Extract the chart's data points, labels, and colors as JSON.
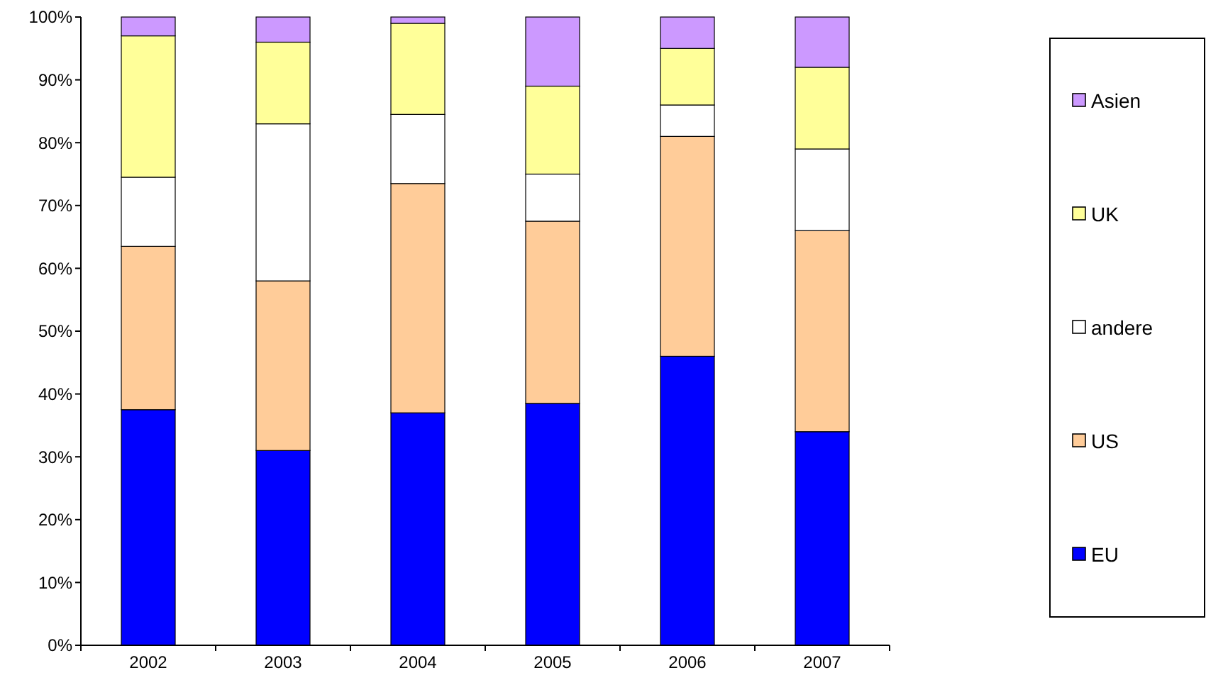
{
  "chart_data": {
    "type": "bar",
    "stacked": true,
    "categories": [
      "2002",
      "2003",
      "2004",
      "2005",
      "2006",
      "2007"
    ],
    "series": [
      {
        "name": "EU",
        "color": "#0000ff",
        "values": [
          37.5,
          31,
          37,
          38.5,
          46,
          34
        ]
      },
      {
        "name": "US",
        "color": "#ffcc99",
        "values": [
          26,
          27,
          36.5,
          29,
          35,
          32
        ]
      },
      {
        "name": "andere",
        "color": "#ffffff",
        "values": [
          11,
          25,
          11,
          7.5,
          5,
          13
        ]
      },
      {
        "name": "UK",
        "color": "#ffff99",
        "values": [
          22.5,
          13,
          14.5,
          14,
          9,
          13
        ]
      },
      {
        "name": "Asien",
        "color": "#cc99ff",
        "values": [
          3,
          4,
          1,
          11,
          5,
          8
        ]
      }
    ],
    "ylim": [
      0,
      100
    ],
    "yticks": [
      {
        "value": 0,
        "label": "0%"
      },
      {
        "value": 10,
        "label": "10%"
      },
      {
        "value": 20,
        "label": "20%"
      },
      {
        "value": 30,
        "label": "30%"
      },
      {
        "value": 40,
        "label": "40%"
      },
      {
        "value": 50,
        "label": "50%"
      },
      {
        "value": 60,
        "label": "60%"
      },
      {
        "value": 70,
        "label": "70%"
      },
      {
        "value": 80,
        "label": "80%"
      },
      {
        "value": 90,
        "label": "90%"
      },
      {
        "value": 100,
        "label": "100%"
      }
    ],
    "grid": false,
    "legend": "right"
  }
}
